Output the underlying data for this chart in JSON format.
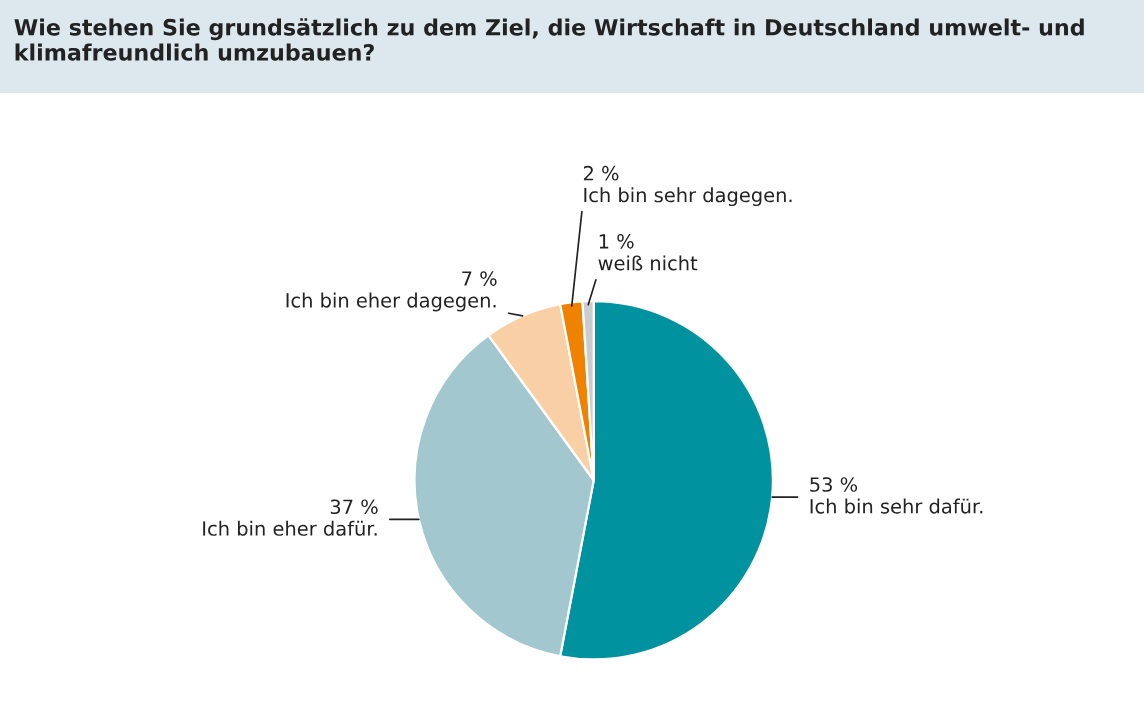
{
  "chart_data": {
    "type": "pie",
    "title": "Wie stehen Sie grundsätzlich zu dem Ziel, die Wirtschaft in Deutschland umwelt- und klimafreundlich umzubauen?",
    "categories": [
      "Ich bin sehr dafür.",
      "Ich bin eher dafür.",
      "Ich bin eher dagegen.",
      "Ich bin sehr dagegen.",
      "weiß nicht"
    ],
    "values": [
      53,
      37,
      7,
      2,
      1
    ],
    "value_labels": [
      "53 %",
      "37 %",
      "7 %",
      "2 %",
      "1 %"
    ],
    "colors": [
      "#00939f",
      "#a3c7cf",
      "#f9cfa6",
      "#ef8200",
      "#c9cdd0"
    ],
    "legend": false
  }
}
